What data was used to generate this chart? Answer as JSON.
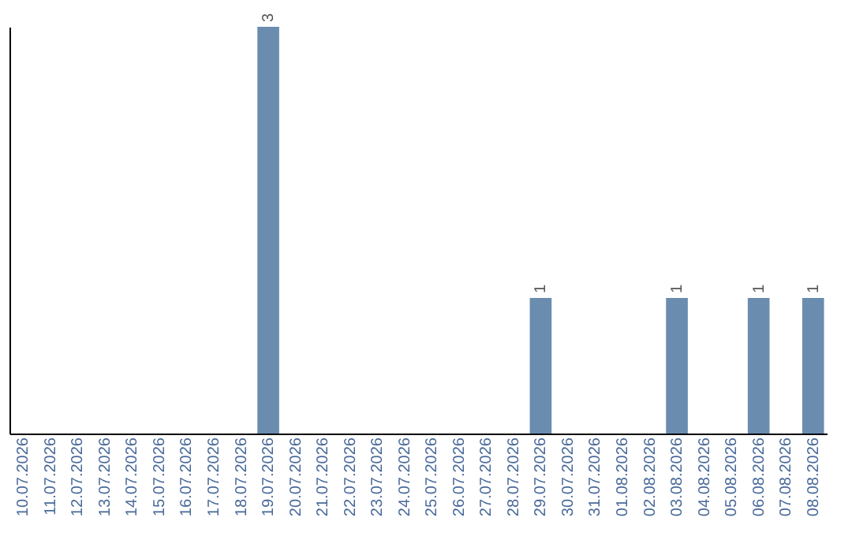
{
  "chart_data": {
    "type": "bar",
    "categories": [
      "10.07.2026",
      "11.07.2026",
      "12.07.2026",
      "13.07.2026",
      "14.07.2026",
      "15.07.2026",
      "16.07.2026",
      "17.07.2026",
      "18.07.2026",
      "19.07.2026",
      "20.07.2026",
      "21.07.2026",
      "22.07.2026",
      "23.07.2026",
      "24.07.2026",
      "25.07.2026",
      "26.07.2026",
      "27.07.2026",
      "28.07.2026",
      "29.07.2026",
      "30.07.2026",
      "31.07.2026",
      "01.08.2026",
      "02.08.2026",
      "03.08.2026",
      "04.08.2026",
      "05.08.2026",
      "06.08.2026",
      "07.08.2026",
      "08.08.2026"
    ],
    "values": [
      0,
      0,
      0,
      0,
      0,
      0,
      0,
      0,
      0,
      3,
      0,
      0,
      0,
      0,
      0,
      0,
      0,
      0,
      0,
      1,
      0,
      0,
      0,
      0,
      1,
      0,
      0,
      1,
      0,
      1
    ],
    "value_labels": [
      null,
      null,
      null,
      null,
      null,
      null,
      null,
      null,
      null,
      "3",
      null,
      null,
      null,
      null,
      null,
      null,
      null,
      null,
      null,
      "1",
      null,
      null,
      null,
      null,
      "1",
      null,
      null,
      "1",
      null,
      "1"
    ],
    "color": "#6a8caf"
  }
}
